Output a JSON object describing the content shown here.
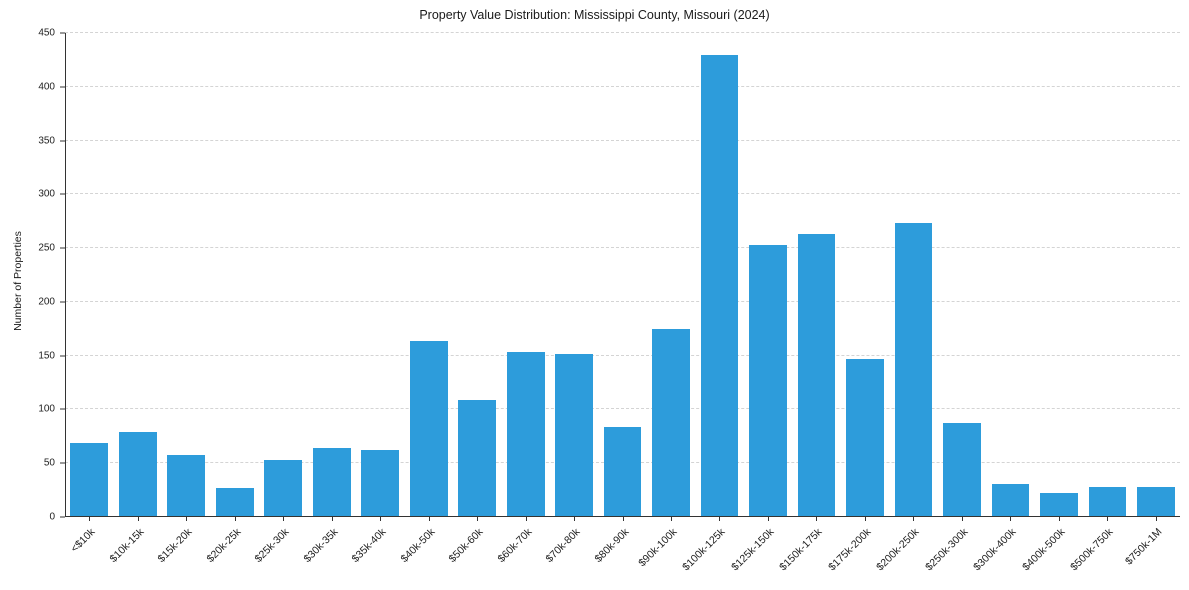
{
  "chart_data": {
    "type": "bar",
    "title": "Property Value Distribution: Mississippi County, Missouri (2024)",
    "xlabel": "",
    "ylabel": "Number of Properties",
    "ylim": [
      0,
      450
    ],
    "ytick_step": 50,
    "grid": "horizontal-dashed",
    "legend": "none",
    "bar_color": "#2D9CDB",
    "categories": [
      "<$10k",
      "$10k-15k",
      "$15k-20k",
      "$20k-25k",
      "$25k-30k",
      "$30k-35k",
      "$35k-40k",
      "$40k-50k",
      "$50k-60k",
      "$60k-70k",
      "$70k-80k",
      "$80k-90k",
      "$90k-100k",
      "$100k-125k",
      "$125k-150k",
      "$150k-175k",
      "$175k-200k",
      "$200k-250k",
      "$250k-300k",
      "$300k-400k",
      "$400k-500k",
      "$500k-750k",
      "$750k-1M"
    ],
    "values": [
      69,
      79,
      58,
      27,
      53,
      64,
      62,
      164,
      109,
      153,
      152,
      84,
      175,
      430,
      253,
      263,
      147,
      273,
      87,
      31,
      22,
      28,
      28
    ]
  }
}
